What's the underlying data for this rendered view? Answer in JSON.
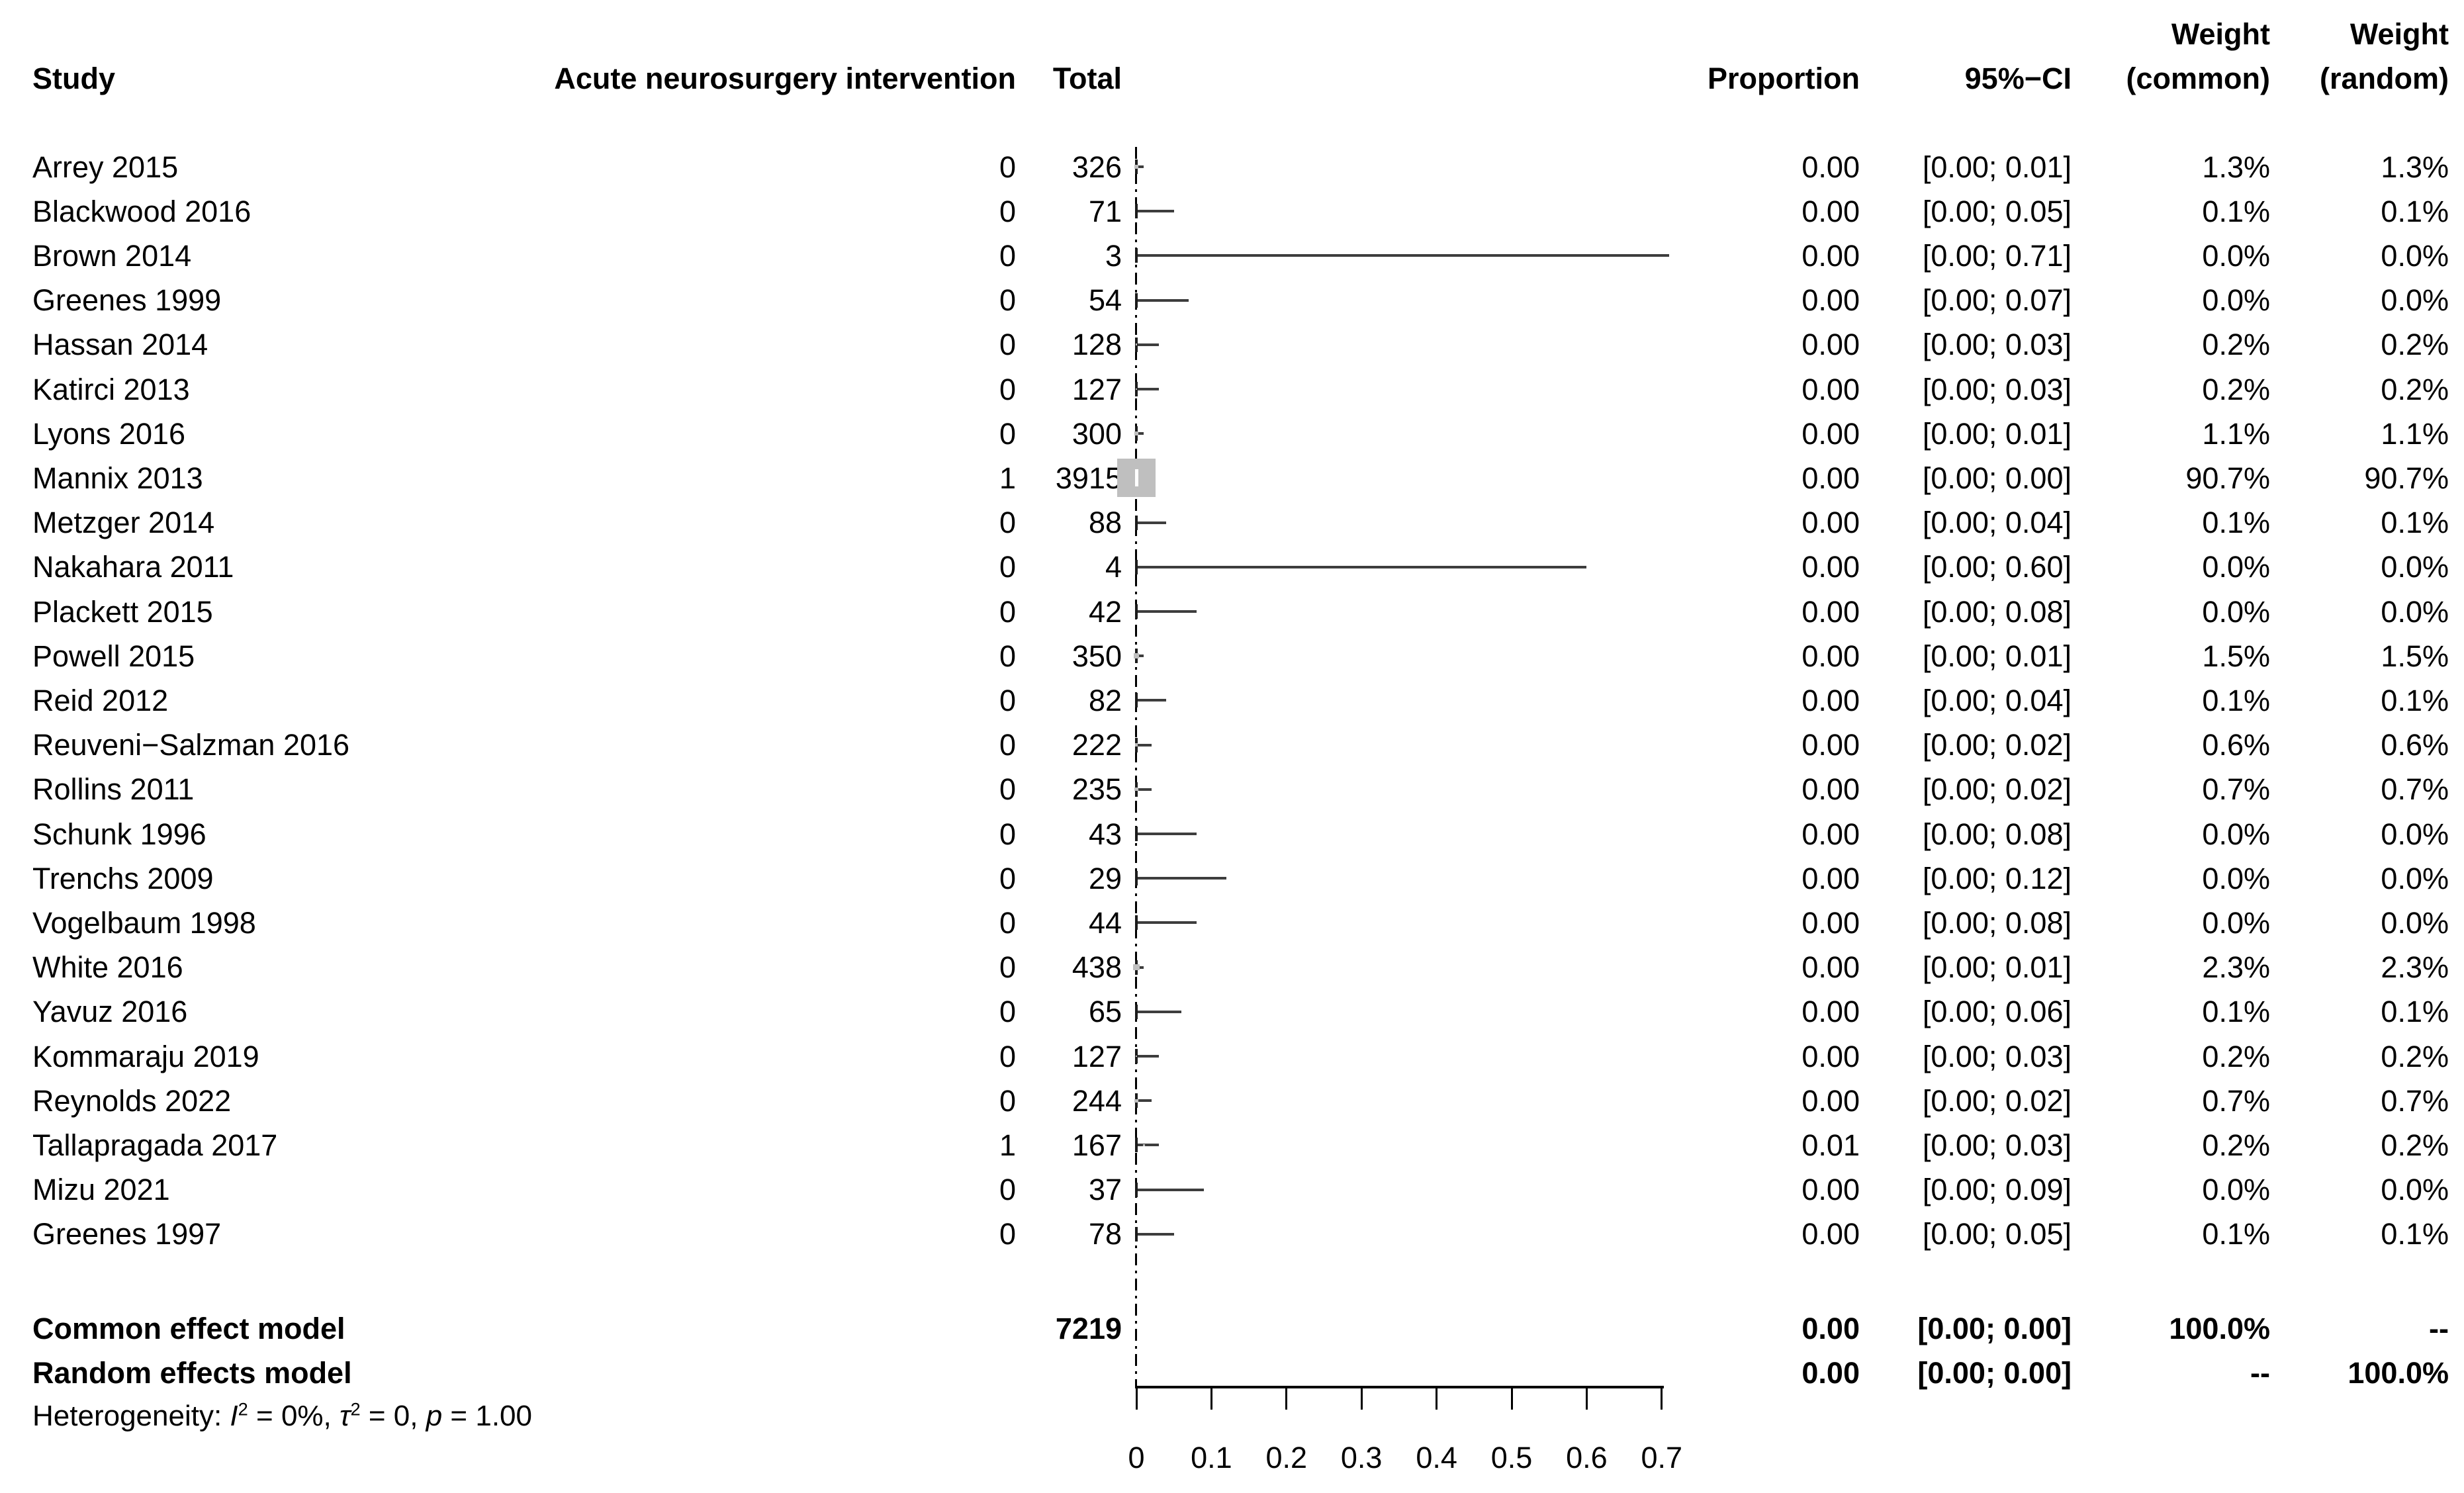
{
  "colors": {
    "background": "#ffffff",
    "text": "#000000",
    "ci_line": "#3d3d3d",
    "marker_fill": "#bfbfbf",
    "zero_line": "#000000"
  },
  "header": {
    "study": "Study",
    "events": "Acute neurosurgery intervention",
    "total": "Total",
    "proportion": "Proportion",
    "ci": "95%−CI",
    "weight_top_common": "Weight",
    "weight_top_random": "Weight",
    "weight_bottom_common": "(common)",
    "weight_bottom_random": "(random)"
  },
  "chart_data": {
    "type": "scatter",
    "subtype": "forest-plot-of-proportions",
    "x_axis": {
      "ticks": [
        "0",
        "0.1",
        "0.2",
        "0.3",
        "0.4",
        "0.5",
        "0.6",
        "0.7"
      ],
      "tick_values": [
        0,
        0.1,
        0.2,
        0.3,
        0.4,
        0.5,
        0.6,
        0.7
      ],
      "xlim": [
        0,
        0.71
      ],
      "zero_line_style": "dash-dot-vertical"
    },
    "studies": [
      {
        "name": "Arrey 2015",
        "events": "0",
        "total": "326",
        "proportion": "0.00",
        "ci": "[0.00; 0.01]",
        "lo": 0.0,
        "hi": 0.01,
        "point": 0.0,
        "weight_common": "1.3%",
        "weight_random": "1.3%",
        "weight_value": 1.3
      },
      {
        "name": "Blackwood 2016",
        "events": "0",
        "total": "71",
        "proportion": "0.00",
        "ci": "[0.00; 0.05]",
        "lo": 0.0,
        "hi": 0.05,
        "point": 0.0,
        "weight_common": "0.1%",
        "weight_random": "0.1%",
        "weight_value": 0.1
      },
      {
        "name": "Brown 2014",
        "events": "0",
        "total": "3",
        "proportion": "0.00",
        "ci": "[0.00; 0.71]",
        "lo": 0.0,
        "hi": 0.71,
        "point": 0.0,
        "weight_common": "0.0%",
        "weight_random": "0.0%",
        "weight_value": 0.0
      },
      {
        "name": "Greenes 1999",
        "events": "0",
        "total": "54",
        "proportion": "0.00",
        "ci": "[0.00; 0.07]",
        "lo": 0.0,
        "hi": 0.07,
        "point": 0.0,
        "weight_common": "0.0%",
        "weight_random": "0.0%",
        "weight_value": 0.0
      },
      {
        "name": "Hassan 2014",
        "events": "0",
        "total": "128",
        "proportion": "0.00",
        "ci": "[0.00; 0.03]",
        "lo": 0.0,
        "hi": 0.03,
        "point": 0.0,
        "weight_common": "0.2%",
        "weight_random": "0.2%",
        "weight_value": 0.2
      },
      {
        "name": "Katirci 2013",
        "events": "0",
        "total": "127",
        "proportion": "0.00",
        "ci": "[0.00; 0.03]",
        "lo": 0.0,
        "hi": 0.03,
        "point": 0.0,
        "weight_common": "0.2%",
        "weight_random": "0.2%",
        "weight_value": 0.2
      },
      {
        "name": "Lyons 2016",
        "events": "0",
        "total": "300",
        "proportion": "0.00",
        "ci": "[0.00; 0.01]",
        "lo": 0.0,
        "hi": 0.01,
        "point": 0.0,
        "weight_common": "1.1%",
        "weight_random": "1.1%",
        "weight_value": 1.1
      },
      {
        "name": "Mannix 2013",
        "events": "1",
        "total": "3915",
        "proportion": "0.00",
        "ci": "[0.00; 0.00]",
        "lo": 0.0,
        "hi": 0.0,
        "point": 0.0,
        "weight_common": "90.7%",
        "weight_random": "90.7%",
        "weight_value": 90.7
      },
      {
        "name": "Metzger 2014",
        "events": "0",
        "total": "88",
        "proportion": "0.00",
        "ci": "[0.00; 0.04]",
        "lo": 0.0,
        "hi": 0.04,
        "point": 0.0,
        "weight_common": "0.1%",
        "weight_random": "0.1%",
        "weight_value": 0.1
      },
      {
        "name": "Nakahara 2011",
        "events": "0",
        "total": "4",
        "proportion": "0.00",
        "ci": "[0.00; 0.60]",
        "lo": 0.0,
        "hi": 0.6,
        "point": 0.0,
        "weight_common": "0.0%",
        "weight_random": "0.0%",
        "weight_value": 0.0
      },
      {
        "name": "Plackett 2015",
        "events": "0",
        "total": "42",
        "proportion": "0.00",
        "ci": "[0.00; 0.08]",
        "lo": 0.0,
        "hi": 0.08,
        "point": 0.0,
        "weight_common": "0.0%",
        "weight_random": "0.0%",
        "weight_value": 0.0
      },
      {
        "name": "Powell 2015",
        "events": "0",
        "total": "350",
        "proportion": "0.00",
        "ci": "[0.00; 0.01]",
        "lo": 0.0,
        "hi": 0.01,
        "point": 0.0,
        "weight_common": "1.5%",
        "weight_random": "1.5%",
        "weight_value": 1.5
      },
      {
        "name": "Reid 2012",
        "events": "0",
        "total": "82",
        "proportion": "0.00",
        "ci": "[0.00; 0.04]",
        "lo": 0.0,
        "hi": 0.04,
        "point": 0.0,
        "weight_common": "0.1%",
        "weight_random": "0.1%",
        "weight_value": 0.1
      },
      {
        "name": "Reuveni−Salzman 2016",
        "events": "0",
        "total": "222",
        "proportion": "0.00",
        "ci": "[0.00; 0.02]",
        "lo": 0.0,
        "hi": 0.02,
        "point": 0.0,
        "weight_common": "0.6%",
        "weight_random": "0.6%",
        "weight_value": 0.6
      },
      {
        "name": "Rollins 2011",
        "events": "0",
        "total": "235",
        "proportion": "0.00",
        "ci": "[0.00; 0.02]",
        "lo": 0.0,
        "hi": 0.02,
        "point": 0.0,
        "weight_common": "0.7%",
        "weight_random": "0.7%",
        "weight_value": 0.7
      },
      {
        "name": "Schunk 1996",
        "events": "0",
        "total": "43",
        "proportion": "0.00",
        "ci": "[0.00; 0.08]",
        "lo": 0.0,
        "hi": 0.08,
        "point": 0.0,
        "weight_common": "0.0%",
        "weight_random": "0.0%",
        "weight_value": 0.0
      },
      {
        "name": "Trenchs 2009",
        "events": "0",
        "total": "29",
        "proportion": "0.00",
        "ci": "[0.00; 0.12]",
        "lo": 0.0,
        "hi": 0.12,
        "point": 0.0,
        "weight_common": "0.0%",
        "weight_random": "0.0%",
        "weight_value": 0.0
      },
      {
        "name": "Vogelbaum 1998",
        "events": "0",
        "total": "44",
        "proportion": "0.00",
        "ci": "[0.00; 0.08]",
        "lo": 0.0,
        "hi": 0.08,
        "point": 0.0,
        "weight_common": "0.0%",
        "weight_random": "0.0%",
        "weight_value": 0.0
      },
      {
        "name": "White 2016",
        "events": "0",
        "total": "438",
        "proportion": "0.00",
        "ci": "[0.00; 0.01]",
        "lo": 0.0,
        "hi": 0.01,
        "point": 0.0,
        "weight_common": "2.3%",
        "weight_random": "2.3%",
        "weight_value": 2.3
      },
      {
        "name": "Yavuz 2016",
        "events": "0",
        "total": "65",
        "proportion": "0.00",
        "ci": "[0.00; 0.06]",
        "lo": 0.0,
        "hi": 0.06,
        "point": 0.0,
        "weight_common": "0.1%",
        "weight_random": "0.1%",
        "weight_value": 0.1
      },
      {
        "name": "Kommaraju 2019",
        "events": "0",
        "total": "127",
        "proportion": "0.00",
        "ci": "[0.00; 0.03]",
        "lo": 0.0,
        "hi": 0.03,
        "point": 0.0,
        "weight_common": "0.2%",
        "weight_random": "0.2%",
        "weight_value": 0.2
      },
      {
        "name": "Reynolds 2022",
        "events": "0",
        "total": "244",
        "proportion": "0.00",
        "ci": "[0.00; 0.02]",
        "lo": 0.0,
        "hi": 0.02,
        "point": 0.0,
        "weight_common": "0.7%",
        "weight_random": "0.7%",
        "weight_value": 0.7
      },
      {
        "name": "Tallapragada 2017",
        "events": "1",
        "total": "167",
        "proportion": "0.01",
        "ci": "[0.00; 0.03]",
        "lo": 0.0,
        "hi": 0.03,
        "point": 0.01,
        "weight_common": "0.2%",
        "weight_random": "0.2%",
        "weight_value": 0.2
      },
      {
        "name": "Mizu 2021",
        "events": "0",
        "total": "37",
        "proportion": "0.00",
        "ci": "[0.00; 0.09]",
        "lo": 0.0,
        "hi": 0.09,
        "point": 0.0,
        "weight_common": "0.0%",
        "weight_random": "0.0%",
        "weight_value": 0.0
      },
      {
        "name": "Greenes 1997",
        "events": "0",
        "total": "78",
        "proportion": "0.00",
        "ci": "[0.00; 0.05]",
        "lo": 0.0,
        "hi": 0.05,
        "point": 0.0,
        "weight_common": "0.1%",
        "weight_random": "0.1%",
        "weight_value": 0.1
      }
    ],
    "summary_rows": [
      {
        "name": "Common effect model",
        "total": "7219",
        "proportion": "0.00",
        "ci": "[0.00; 0.00]",
        "weight_common": "100.0%",
        "weight_random": "--"
      },
      {
        "name": "Random effects model",
        "total": "",
        "proportion": "0.00",
        "ci": "[0.00; 0.00]",
        "weight_common": "--",
        "weight_random": "100.0%"
      }
    ],
    "heterogeneity": {
      "prefix": "Heterogeneity: ",
      "i": "I",
      "i_sup": "2",
      "seg1": " = 0%, ",
      "tau": "τ",
      "tau_sup": "2",
      "seg2": " = 0, ",
      "p": "p",
      "seg3": " = 1.00"
    }
  }
}
